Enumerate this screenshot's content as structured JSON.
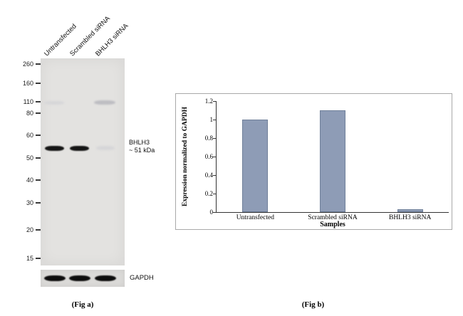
{
  "figure": {
    "fig_a_caption": "(Fig a)",
    "fig_b_caption": "(Fig b)"
  },
  "western_blot": {
    "lane_labels": [
      "Untransfected",
      "Scrambled siRNA",
      "BHLH3 siRNA"
    ],
    "mw_markers": [
      "260",
      "160",
      "110",
      "80",
      "60",
      "50",
      "40",
      "30",
      "20",
      "15"
    ],
    "target_label_line1": "BHLH3",
    "target_label_line2": "~ 51 kDa",
    "loading_control_label": "GAPDH"
  },
  "chart_data": {
    "type": "bar",
    "title": "",
    "categories": [
      "Untransfected",
      "Scrambled siRNA",
      "BHLH3 siRNA"
    ],
    "values": [
      1.0,
      1.1,
      0.03
    ],
    "xlabel": "Samples",
    "ylabel": "Expression  normalized to GAPDH",
    "ylim": [
      0,
      1.2
    ],
    "ytick_labels": [
      "0",
      "0.2",
      "0.4",
      "0.6",
      "0.8",
      "1",
      "1.2"
    ],
    "bar_color": "#8e9cb6",
    "bar_border_color": "#70809a",
    "legend": "none",
    "grid": false
  }
}
